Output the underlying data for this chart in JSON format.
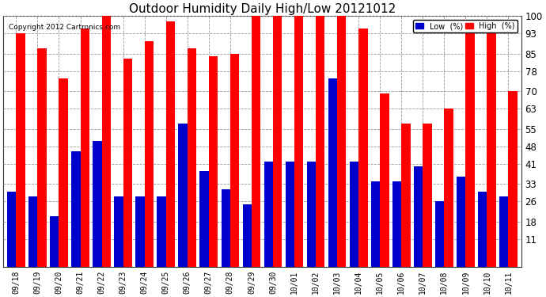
{
  "title": "Outdoor Humidity Daily High/Low 20121012",
  "copyright": "Copyright 2012 Cartronics.com",
  "categories": [
    "09/18",
    "09/19",
    "09/20",
    "09/21",
    "09/22",
    "09/23",
    "09/24",
    "09/25",
    "09/26",
    "09/27",
    "09/28",
    "09/29",
    "09/30",
    "10/01",
    "10/02",
    "10/03",
    "10/04",
    "10/05",
    "10/06",
    "10/07",
    "10/08",
    "10/09",
    "10/10",
    "10/11"
  ],
  "high_values": [
    93,
    87,
    75,
    95,
    100,
    83,
    90,
    98,
    87,
    84,
    85,
    100,
    100,
    100,
    100,
    100,
    95,
    69,
    57,
    57,
    63,
    95,
    94,
    70
  ],
  "low_values": [
    30,
    28,
    20,
    46,
    50,
    28,
    28,
    28,
    57,
    38,
    31,
    25,
    42,
    42,
    42,
    75,
    42,
    34,
    34,
    40,
    26,
    36,
    30,
    28
  ],
  "high_color": "#ff0000",
  "low_color": "#0000cc",
  "background_color": "#ffffff",
  "grid_color": "#999999",
  "ylim_min": 11,
  "ylim_max": 100,
  "yticks": [
    11,
    18,
    26,
    33,
    41,
    48,
    55,
    63,
    70,
    78,
    85,
    93,
    100
  ],
  "title_fontsize": 11,
  "legend_low_label": "Low  (%)",
  "legend_high_label": "High  (%)"
}
